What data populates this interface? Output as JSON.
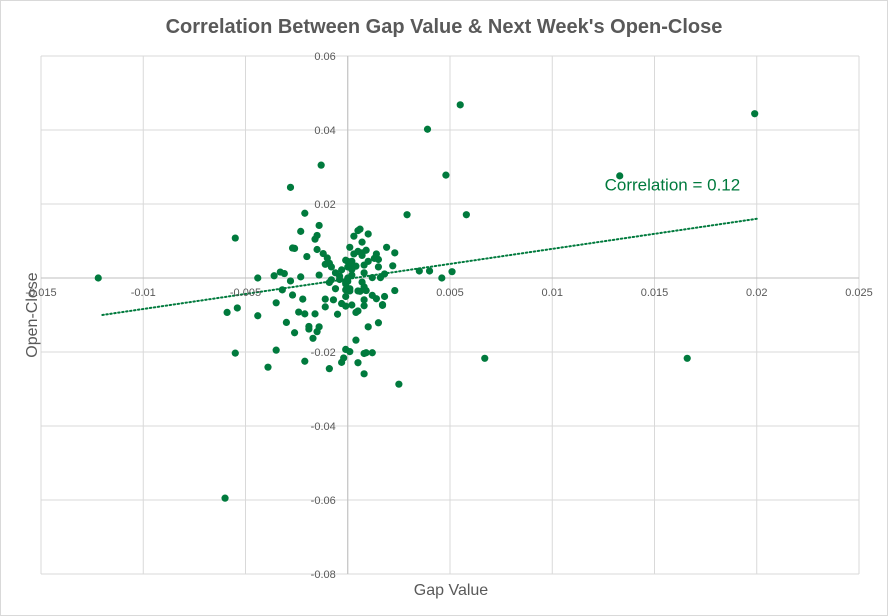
{
  "chart_data": {
    "type": "scatter",
    "title": "Correlation Between Gap Value & Next Week's Open-Close",
    "xlabel": "Gap Value",
    "ylabel": "Open-Close",
    "xlim": [
      -0.015,
      0.025
    ],
    "ylim": [
      -0.08,
      0.06
    ],
    "x_ticks": [
      -0.015,
      -0.01,
      -0.005,
      0,
      0.005,
      0.01,
      0.015,
      0.02,
      0.025
    ],
    "x_tick_labels": [
      "-0.015",
      "-0.01",
      "-0.005",
      "",
      "0.005",
      "0.01",
      "0.015",
      "0.02",
      "0.025"
    ],
    "y_ticks": [
      -0.08,
      -0.06,
      -0.04,
      -0.02,
      0,
      0.02,
      0.04,
      0.06
    ],
    "y_tick_labels": [
      "-0.08",
      "-0.06",
      "-0.04",
      "-0.02",
      "",
      "0.02",
      "0.04",
      "0.06"
    ],
    "grid": true,
    "marker_color": "#007a3d",
    "trendline": {
      "style": "dotted",
      "color": "#007a3d",
      "x_start": -0.012,
      "y_start": -0.01,
      "x_end": 0.02,
      "y_end": 0.016
    },
    "annotation": {
      "text": "Correlation = 0.12",
      "x": 0.013,
      "y": 0.025
    },
    "series": [
      {
        "name": "Open-Close",
        "points": [
          [
            -0.0122,
            0.0
          ],
          [
            -0.006,
            -0.0595
          ],
          [
            -0.0059,
            -0.0093
          ],
          [
            -0.0055,
            0.0108
          ],
          [
            -0.0055,
            -0.0203
          ],
          [
            -0.0054,
            -0.0081
          ],
          [
            -0.0044,
            -0.0102
          ],
          [
            -0.0044,
            0.0
          ],
          [
            -0.0039,
            -0.0241
          ],
          [
            -0.0036,
            0.0006
          ],
          [
            -0.0035,
            -0.0067
          ],
          [
            -0.0035,
            -0.0195
          ],
          [
            -0.0033,
            0.0016
          ],
          [
            -0.0032,
            -0.0032
          ],
          [
            -0.0031,
            0.0012
          ],
          [
            -0.0028,
            0.0245
          ],
          [
            -0.0028,
            -0.0008
          ],
          [
            -0.003,
            -0.012
          ],
          [
            -0.0026,
            0.008
          ],
          [
            -0.0026,
            -0.0148
          ],
          [
            -0.0024,
            -0.0092
          ],
          [
            -0.0023,
            0.0003
          ],
          [
            -0.0027,
            -0.0046
          ],
          [
            -0.0022,
            -0.0057
          ],
          [
            -0.0021,
            0.0175
          ],
          [
            -0.0021,
            -0.0225
          ],
          [
            -0.0027,
            0.0081
          ],
          [
            -0.0019,
            -0.0131
          ],
          [
            -0.0017,
            -0.0163
          ],
          [
            -0.0015,
            0.0115
          ],
          [
            -0.0013,
            0.0305
          ],
          [
            -0.0009,
            0.004
          ],
          [
            -0.0005,
            -0.0098
          ],
          [
            -0.0001,
            -0.0193
          ],
          [
            0.0005,
            0.0072
          ],
          [
            0.0008,
            -0.0259
          ],
          [
            0.001,
            0.0045
          ],
          [
            0.0014,
            -0.0056
          ],
          [
            0.0017,
            -0.0072
          ],
          [
            0.0022,
            0.0033
          ],
          [
            0.0025,
            -0.0287
          ],
          [
            0.0029,
            0.0171
          ],
          [
            0.0035,
            0.0019
          ],
          [
            0.0039,
            0.0402
          ],
          [
            0.004,
            0.0019
          ],
          [
            0.0046,
            0.0
          ],
          [
            0.0048,
            0.0278
          ],
          [
            0.0051,
            0.0017
          ],
          [
            0.0055,
            0.0468
          ],
          [
            0.0058,
            0.0171
          ],
          [
            0.0067,
            -0.0217
          ],
          [
            0.0133,
            0.0276
          ],
          [
            0.0166,
            -0.0217
          ],
          [
            0.0199,
            0.0444
          ],
          [
            -0.0021,
            -0.0097
          ],
          [
            0.0008,
            -0.0059
          ],
          [
            -0.0003,
            -0.0228
          ],
          [
            0.0009,
            0.0075
          ],
          [
            0.0018,
            -0.005
          ],
          [
            0.0017,
            -0.0074
          ],
          [
            -0.0023,
            0.0126
          ],
          [
            0.0012,
            -0.0202
          ],
          [
            -0.0011,
            -0.0057
          ],
          [
            0.0014,
            0.0065
          ],
          [
            -0.0009,
            -0.0245
          ],
          [
            0.0007,
            0.0097
          ],
          [
            -0.0002,
            -0.0216
          ],
          [
            0.0002,
            0.0045
          ],
          [
            0.0019,
            0.0083
          ],
          [
            0.0003,
            0.0113
          ],
          [
            0.0009,
            -0.0202
          ],
          [
            0.0023,
            0.0068
          ],
          [
            -0.0019,
            -0.0138
          ],
          [
            0.0023,
            -0.0034
          ],
          [
            0.0008,
            -0.0075
          ],
          [
            -0.0015,
            0.0077
          ],
          [
            -0.0016,
            -0.0097
          ],
          [
            -0.0001,
            -0.005
          ],
          [
            0.0001,
            0.0083
          ],
          [
            -0.0015,
            -0.0145
          ],
          [
            0.0005,
            -0.0229
          ],
          [
            -0.002,
            0.0058
          ],
          [
            0.0001,
            -0.0035
          ],
          [
            0.001,
            -0.0132
          ],
          [
            0.0004,
            -0.0168
          ],
          [
            -0.0014,
            0.0008
          ],
          [
            0.0005,
            0.0128
          ],
          [
            0.0008,
            -0.0204
          ],
          [
            0.0004,
            0.0032
          ],
          [
            -0.0008,
            -0.0005
          ],
          [
            -0.0012,
            0.0066
          ],
          [
            0.0002,
            0.0023
          ],
          [
            0.0006,
            0.0132
          ],
          [
            0.0002,
            -0.0073
          ],
          [
            0.0007,
            0.0068
          ],
          [
            0.0015,
            -0.0121
          ],
          [
            -0.0014,
            0.0142
          ],
          [
            0.0001,
            -0.0199
          ],
          [
            -0.0016,
            0.0105
          ],
          [
            0.0013,
            0.0053
          ],
          [
            0.001,
            0.0119
          ],
          [
            0.0006,
            -0.0036
          ],
          [
            0.0012,
            -0.0047
          ],
          [
            -0.0011,
            0.0037
          ],
          [
            0.0012,
            0.0001
          ],
          [
            0.0015,
            0.005
          ],
          [
            0.0008,
            0.0014
          ],
          [
            0.0005,
            -0.0089
          ],
          [
            -0.0014,
            -0.0132
          ],
          [
            0.0004,
            -0.0093
          ],
          [
            0.0018,
            0.0011
          ],
          [
            0.0007,
            -0.0011
          ],
          [
            0.0003,
            0.0065
          ],
          [
            0.0016,
            0.0001
          ],
          [
            -0.0004,
            -0.0004
          ],
          [
            0.0009,
            -0.0034
          ],
          [
            -0.0001,
            -0.0032
          ],
          [
            0.0,
            -0.0009
          ],
          [
            -0.0001,
            0.0048
          ],
          [
            -0.0011,
            -0.0078
          ],
          [
            0.0015,
            0.003
          ],
          [
            -0.0008,
            0.003
          ],
          [
            0.0005,
            -0.0035
          ],
          [
            -0.0009,
            -0.0012
          ],
          [
            0.0008,
            0.0035
          ],
          [
            -0.0003,
            0.0022
          ],
          [
            -0.0006,
            -0.0029
          ],
          [
            -0.0007,
            -0.0059
          ],
          [
            0.0008,
            -0.0024
          ],
          [
            -0.0001,
            -0.0076
          ],
          [
            0.0007,
            0.0061
          ],
          [
            0.0001,
            -0.0029
          ],
          [
            -0.0003,
            -0.0069
          ],
          [
            -0.001,
            0.0054
          ],
          [
            -0.0004,
            0.0005
          ],
          [
            -0.0006,
            0.0014
          ],
          [
            -0.0001,
            -0.0012
          ],
          [
            -0.0001,
            -0.0016
          ],
          [
            0.0,
            0.0045
          ],
          [
            0.0,
            0.003
          ],
          [
            0.0001,
            0.0031
          ],
          [
            0.0002,
            0.0008
          ],
          [
            0.0,
            0.0
          ]
        ]
      }
    ]
  }
}
